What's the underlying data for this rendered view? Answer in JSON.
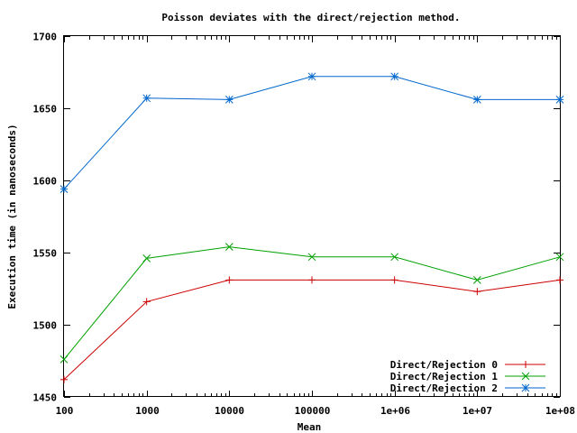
{
  "chart_data": {
    "type": "line",
    "title": "Poisson deviates with the direct/rejection method.",
    "xlabel": "Mean",
    "ylabel": "Execution time (in nanoseconds)",
    "x_scale": "log",
    "x": [
      100,
      1000,
      10000,
      100000,
      1000000,
      10000000,
      100000000
    ],
    "x_tick_labels": [
      "100",
      "1000",
      "10000",
      "100000",
      "1e+06",
      "1e+07",
      "1e+08"
    ],
    "ylim": [
      1450,
      1700
    ],
    "y_ticks": [
      1450,
      1500,
      1550,
      1600,
      1650,
      1700
    ],
    "grid": false,
    "legend_position": "bottom-right",
    "series": [
      {
        "name": "Direct/Rejection 0",
        "color": "#cc0000",
        "marker": "plus",
        "values": [
          1462,
          1516,
          1531,
          1531,
          1531,
          1523,
          1531
        ]
      },
      {
        "name": "Direct/Rejection 1",
        "color": "#00a000",
        "marker": "cross",
        "values": [
          1476,
          1546,
          1554,
          1547,
          1547,
          1531,
          1547
        ]
      },
      {
        "name": "Direct/Rejection 2",
        "color": "#0066cc",
        "marker": "star",
        "values": [
          1594,
          1657,
          1656,
          1672,
          1672,
          1656,
          1656
        ]
      }
    ]
  }
}
